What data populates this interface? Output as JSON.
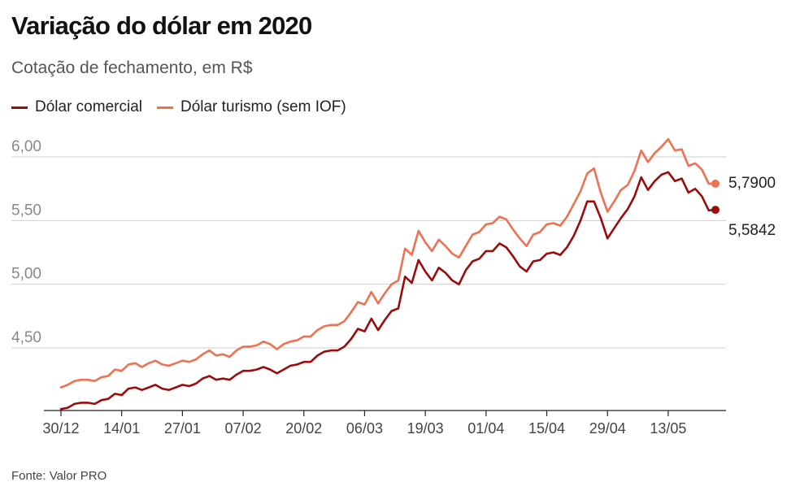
{
  "header": {
    "title": "Variação do dólar em 2020",
    "subtitle": "Cotação de fechamento, em R$"
  },
  "footer": {
    "source": "Fonte: Valor PRO"
  },
  "chart_data": {
    "type": "line",
    "title": "Variação do dólar em 2020",
    "subtitle": "Cotação de fechamento, em R$",
    "xlabel": "",
    "ylabel": "",
    "ylim": [
      4.0,
      6.15
    ],
    "grid": true,
    "legend_position": "top-left",
    "yticks": [
      4.5,
      5.0,
      5.5,
      6.0
    ],
    "ytick_labels": [
      "4,50",
      "5,00",
      "5,50",
      "6,00"
    ],
    "xtick_labels": [
      "30/12",
      "14/01",
      "27/01",
      "07/02",
      "20/02",
      "06/03",
      "19/03",
      "01/04",
      "15/04",
      "29/04",
      "13/05"
    ],
    "xtick_positions": [
      0,
      9,
      18,
      27,
      36,
      45,
      54,
      63,
      72,
      81,
      90
    ],
    "series": [
      {
        "name": "Dólar comercial",
        "color": "#9b0b0b",
        "end_label": "5,5842",
        "values": [
          4.02,
          4.03,
          4.06,
          4.07,
          4.07,
          4.06,
          4.09,
          4.1,
          4.14,
          4.13,
          4.18,
          4.19,
          4.17,
          4.19,
          4.21,
          4.18,
          4.17,
          4.19,
          4.21,
          4.2,
          4.22,
          4.26,
          4.28,
          4.25,
          4.26,
          4.25,
          4.29,
          4.32,
          4.32,
          4.33,
          4.35,
          4.33,
          4.3,
          4.33,
          4.36,
          4.37,
          4.39,
          4.39,
          4.44,
          4.47,
          4.48,
          4.48,
          4.51,
          4.57,
          4.65,
          4.63,
          4.73,
          4.64,
          4.72,
          4.79,
          4.81,
          5.06,
          5.01,
          5.19,
          5.1,
          5.03,
          5.13,
          5.09,
          5.03,
          5.0,
          5.11,
          5.18,
          5.2,
          5.26,
          5.26,
          5.32,
          5.29,
          5.22,
          5.14,
          5.1,
          5.18,
          5.19,
          5.24,
          5.25,
          5.23,
          5.29,
          5.38,
          5.5,
          5.65,
          5.65,
          5.52,
          5.36,
          5.44,
          5.52,
          5.59,
          5.69,
          5.84,
          5.74,
          5.81,
          5.86,
          5.88,
          5.81,
          5.83,
          5.72,
          5.75,
          5.69,
          5.58,
          5.5842
        ]
      },
      {
        "name": "Dólar turismo (sem IOF)",
        "color": "#ee7152",
        "end_label": "5,7900",
        "values": [
          4.19,
          4.21,
          4.24,
          4.25,
          4.25,
          4.24,
          4.27,
          4.28,
          4.33,
          4.32,
          4.37,
          4.38,
          4.35,
          4.38,
          4.4,
          4.37,
          4.36,
          4.38,
          4.4,
          4.39,
          4.41,
          4.45,
          4.48,
          4.44,
          4.45,
          4.43,
          4.48,
          4.51,
          4.51,
          4.52,
          4.55,
          4.53,
          4.49,
          4.53,
          4.55,
          4.56,
          4.59,
          4.59,
          4.64,
          4.67,
          4.68,
          4.68,
          4.71,
          4.78,
          4.86,
          4.84,
          4.94,
          4.85,
          4.93,
          5.0,
          5.03,
          5.28,
          5.23,
          5.42,
          5.33,
          5.26,
          5.35,
          5.3,
          5.24,
          5.21,
          5.3,
          5.39,
          5.41,
          5.47,
          5.48,
          5.53,
          5.51,
          5.43,
          5.36,
          5.3,
          5.39,
          5.41,
          5.47,
          5.48,
          5.46,
          5.53,
          5.63,
          5.73,
          5.87,
          5.91,
          5.72,
          5.57,
          5.65,
          5.74,
          5.78,
          5.89,
          6.05,
          5.96,
          6.03,
          6.08,
          6.14,
          6.05,
          6.06,
          5.93,
          5.95,
          5.9,
          5.79,
          5.79
        ]
      }
    ]
  }
}
